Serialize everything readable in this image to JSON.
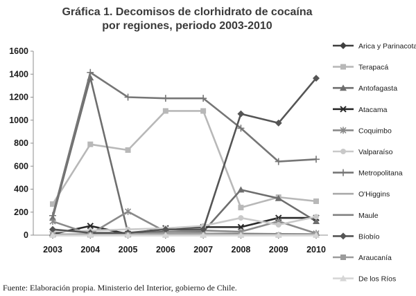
{
  "chart_data": {
    "type": "line",
    "title_lines": [
      "Gráfica 1. Decomisos de clorhidrato de cocaína",
      "por regiones, periodo 2003-2010"
    ],
    "source": "Fuente: Elaboración propia. Ministerio del Interior, gobierno de Chile.",
    "categories": [
      "2003",
      "2004",
      "2005",
      "2006",
      "2007",
      "2008",
      "2009",
      "2010"
    ],
    "ylim": [
      0,
      1600
    ],
    "yticks": [
      0,
      200,
      400,
      600,
      800,
      1000,
      1200,
      1400,
      1600
    ],
    "grid": false,
    "legend_position": "right",
    "series": [
      {
        "name": "Arica y Parinacota",
        "values": [
          0,
          0,
          0,
          0,
          0,
          0,
          0,
          0
        ],
        "color": "#3f3f3f",
        "marker": "diamond"
      },
      {
        "name": "Terapacá",
        "values": [
          270,
          790,
          740,
          1080,
          1080,
          240,
          330,
          295
        ],
        "color": "#b8b8b8",
        "marker": "square"
      },
      {
        "name": "Antofagasta",
        "values": [
          150,
          1370,
          20,
          30,
          30,
          395,
          320,
          120
        ],
        "color": "#6e6e6e",
        "marker": "triangle"
      },
      {
        "name": "Atacama",
        "values": [
          10,
          80,
          10,
          60,
          70,
          70,
          150,
          150
        ],
        "color": "#2a2a2a",
        "marker": "x"
      },
      {
        "name": "Coquimbo",
        "values": [
          120,
          10,
          205,
          30,
          40,
          30,
          120,
          15
        ],
        "color": "#8a8a8a",
        "marker": "star"
      },
      {
        "name": "Valparaíso",
        "values": [
          30,
          40,
          50,
          60,
          80,
          150,
          90,
          160
        ],
        "color": "#c9c9c9",
        "marker": "circle"
      },
      {
        "name": "Metropolitana",
        "values": [
          170,
          1415,
          1200,
          1190,
          1190,
          930,
          640,
          660
        ],
        "color": "#767676",
        "marker": "plus"
      },
      {
        "name": "O'Higgins",
        "values": [
          5,
          10,
          10,
          15,
          15,
          15,
          10,
          10
        ],
        "color": "#aaaaaa",
        "marker": "none"
      },
      {
        "name": "Maule",
        "values": [
          5,
          5,
          5,
          5,
          5,
          10,
          10,
          5
        ],
        "color": "#808080",
        "marker": "none"
      },
      {
        "name": "Bíobío",
        "values": [
          50,
          20,
          20,
          50,
          50,
          1055,
          975,
          1365
        ],
        "color": "#555555",
        "marker": "diamond"
      },
      {
        "name": "Araucanía",
        "values": [
          0,
          0,
          0,
          0,
          0,
          0,
          0,
          0
        ],
        "color": "#9b9b9b",
        "marker": "square"
      },
      {
        "name": "De los Ríos",
        "values": [
          0,
          0,
          0,
          0,
          0,
          0,
          0,
          0
        ],
        "color": "#d6d6d6",
        "marker": "triangle"
      }
    ]
  }
}
